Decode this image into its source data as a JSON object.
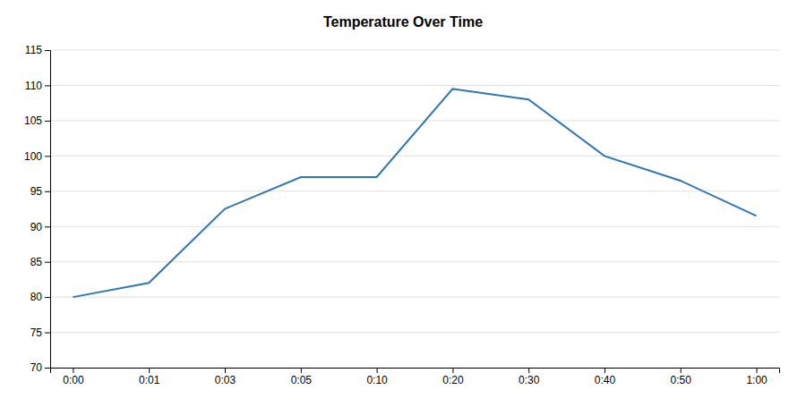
{
  "chart_data": {
    "type": "line",
    "title": "Temperature Over Time",
    "categories": [
      "0:00",
      "0:01",
      "0:03",
      "0:05",
      "0:10",
      "0:20",
      "0:30",
      "0:40",
      "0:50",
      "1:00"
    ],
    "values": [
      80.0,
      82.0,
      92.5,
      97.0,
      97.0,
      109.5,
      108.0,
      100.0,
      96.5,
      91.5
    ],
    "color": "#2e75b6",
    "ylim": [
      70,
      115
    ],
    "yticks": [
      70,
      75,
      80,
      85,
      90,
      95,
      100,
      105,
      110,
      115
    ],
    "grid": true
  }
}
